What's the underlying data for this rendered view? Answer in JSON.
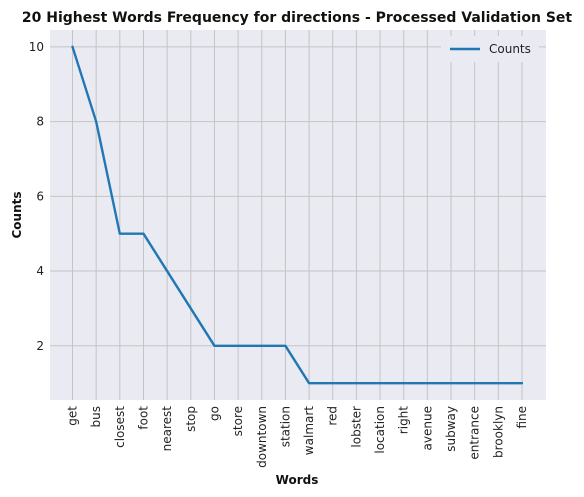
{
  "chart_data": {
    "type": "line",
    "title": "20 Highest Words Frequency for directions - Processed Validation Set",
    "xlabel": "Words",
    "ylabel": "Counts",
    "categories": [
      "get",
      "bus",
      "closest",
      "foot",
      "nearest",
      "stop",
      "go",
      "store",
      "downtown",
      "station",
      "walmart",
      "red",
      "lobster",
      "location",
      "right",
      "avenue",
      "subway",
      "entrance",
      "brooklyn",
      "fine"
    ],
    "series": [
      {
        "name": "Counts",
        "values": [
          10,
          8,
          5,
          5,
          4,
          3,
          2,
          2,
          2,
          2,
          1,
          1,
          1,
          1,
          1,
          1,
          1,
          1,
          1,
          1
        ]
      }
    ],
    "ylim": [
      0.55,
      10.45
    ],
    "yticks": [
      2,
      4,
      6,
      8,
      10
    ],
    "grid": true,
    "legend": "top-right",
    "colors": {
      "background": "#eaeaf2",
      "grid": "#c4c4c4",
      "series": "#1f77b4"
    }
  }
}
